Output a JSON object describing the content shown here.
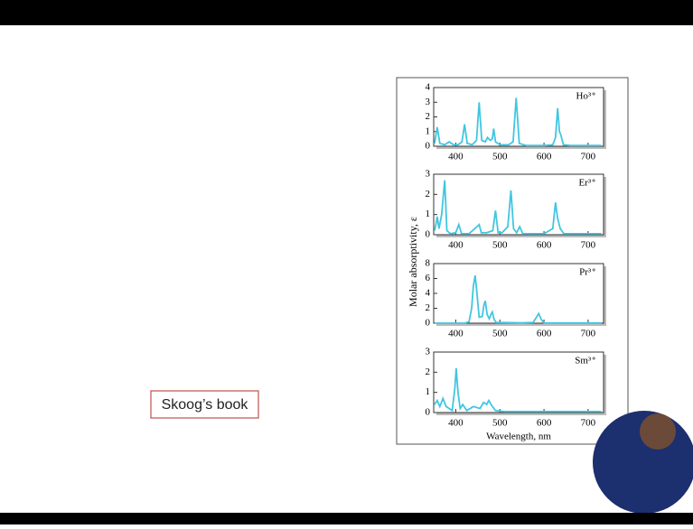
{
  "slide": {
    "caption": "Skoog’s book"
  },
  "figure": {
    "ylabel": "Molar absorptivity, ε"
  },
  "chart_data": [
    {
      "type": "line",
      "title": "Ho³⁺",
      "color": "#41c6e0",
      "xlim": [
        350,
        735
      ],
      "xticks": [
        400,
        500,
        600,
        700
      ],
      "ylim": [
        0,
        4
      ],
      "yticks": [
        0,
        1,
        2,
        3,
        4
      ],
      "x": [
        352,
        358,
        364,
        375,
        385,
        395,
        405,
        414,
        420,
        426,
        437,
        447,
        453,
        459,
        467,
        472,
        478,
        483,
        486,
        490,
        500,
        520,
        530,
        537,
        544,
        560,
        600,
        620,
        626,
        631,
        635,
        638,
        644,
        660,
        700,
        730
      ],
      "values": [
        0.2,
        1.3,
        0.2,
        0.1,
        0.3,
        0.1,
        0.1,
        0.3,
        1.5,
        0.2,
        0.1,
        0.4,
        3.0,
        0.4,
        0.3,
        0.6,
        0.4,
        0.5,
        1.2,
        0.3,
        0.1,
        0.1,
        0.3,
        3.3,
        0.2,
        0.05,
        0.05,
        0.1,
        0.6,
        2.6,
        1.0,
        0.8,
        0.1,
        0.05,
        0.05,
        0.05
      ]
    },
    {
      "type": "line",
      "title": "Er³⁺",
      "color": "#41c6e0",
      "xlim": [
        350,
        735
      ],
      "xticks": [
        400,
        500,
        600,
        700
      ],
      "ylim": [
        0,
        3
      ],
      "yticks": [
        0,
        1,
        2,
        3
      ],
      "x": [
        352,
        355,
        358,
        362,
        368,
        375,
        380,
        388,
        400,
        407,
        413,
        430,
        448,
        453,
        458,
        470,
        484,
        490,
        496,
        505,
        518,
        525,
        531,
        538,
        545,
        552,
        570,
        600,
        620,
        626,
        631,
        637,
        645,
        680,
        730
      ],
      "values": [
        0.2,
        0.5,
        0.9,
        0.3,
        1.0,
        2.7,
        0.2,
        0.05,
        0.1,
        0.5,
        0.05,
        0.05,
        0.4,
        0.5,
        0.1,
        0.1,
        0.2,
        1.2,
        0.1,
        0.1,
        0.4,
        2.2,
        0.3,
        0.1,
        0.4,
        0.05,
        0.05,
        0.05,
        0.3,
        1.6,
        0.8,
        0.3,
        0.05,
        0.05,
        0.05
      ]
    },
    {
      "type": "line",
      "title": "Pr³⁺",
      "color": "#41c6e0",
      "xlim": [
        350,
        735
      ],
      "xticks": [
        400,
        500,
        600,
        700
      ],
      "ylim": [
        0,
        8
      ],
      "yticks": [
        0,
        2,
        4,
        6,
        8
      ],
      "x": [
        352,
        420,
        430,
        436,
        440,
        444,
        448,
        453,
        460,
        464,
        467,
        471,
        476,
        480,
        483,
        487,
        492,
        550,
        575,
        583,
        588,
        594,
        600,
        650,
        730
      ],
      "values": [
        0,
        0,
        0.2,
        2,
        5,
        6.4,
        4,
        0.8,
        0.9,
        2.5,
        3.0,
        1.2,
        0.6,
        1.2,
        1.5,
        0.5,
        0.1,
        0.05,
        0.1,
        0.8,
        1.3,
        0.5,
        0.05,
        0.02,
        0.02
      ]
    },
    {
      "type": "line",
      "title": "Sm³⁺",
      "color": "#41c6e0",
      "xlim": [
        350,
        735
      ],
      "xticks": [
        400,
        500,
        600,
        700
      ],
      "ylim": [
        0,
        3
      ],
      "yticks": [
        0,
        1,
        2,
        3
      ],
      "xlabel": "Wavelength, nm",
      "x": [
        352,
        358,
        364,
        371,
        378,
        385,
        392,
        398,
        401,
        405,
        410,
        416,
        425,
        440,
        455,
        463,
        470,
        475,
        480,
        490,
        510,
        600,
        700,
        730
      ],
      "values": [
        0.4,
        0.6,
        0.3,
        0.7,
        0.3,
        0.2,
        0.1,
        1.2,
        2.2,
        1.0,
        0.2,
        0.4,
        0.1,
        0.3,
        0.2,
        0.5,
        0.4,
        0.6,
        0.4,
        0.1,
        0.05,
        0.05,
        0.05,
        0.05
      ]
    }
  ]
}
